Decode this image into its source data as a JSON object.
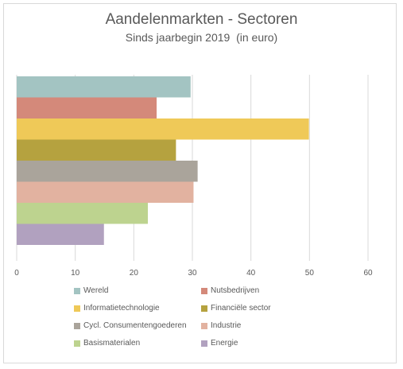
{
  "chart_data": {
    "type": "bar",
    "orientation": "horizontal",
    "title": "Aandelenmarkten - Sectoren",
    "subtitle": "Sinds jaarbegin 2019  (in euro)",
    "xlabel": "",
    "ylabel": "",
    "xlim": [
      0,
      60
    ],
    "xticks": [
      "0",
      "10",
      "20",
      "30",
      "40",
      "50",
      "60"
    ],
    "gridlines": true,
    "legend_position": "bottom",
    "categories": [
      "Wereld",
      "Nutsbedrijven",
      "Informatietechnologie",
      "Financiële sector",
      "Cycl. Consumentengoederen",
      "Industrie",
      "Basismaterialen",
      "Energie"
    ],
    "values": [
      29.7,
      23.9,
      49.9,
      27.2,
      30.9,
      30.2,
      22.4,
      14.9
    ],
    "colors": [
      "#a3c4c2",
      "#d4897a",
      "#efc958",
      "#b5a23f",
      "#aaa49b",
      "#e2b2a0",
      "#bdd38f",
      "#b1a1bf"
    ]
  }
}
